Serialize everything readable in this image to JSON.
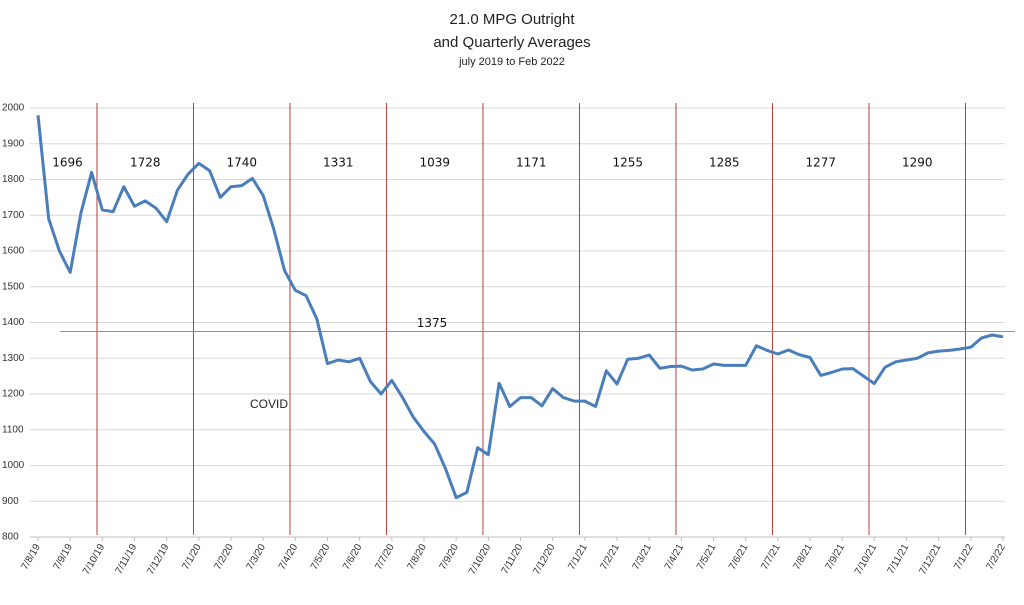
{
  "chart_data": {
    "type": "line",
    "title": "21.0 MPG Outright",
    "subtitle_line": "and Quarterly Averages",
    "subtitle": "july 2019 to Feb 2022",
    "categories": [
      "7/8/19",
      null,
      null,
      "7/9/19",
      null,
      null,
      "7/10/19",
      null,
      null,
      "7/11/19",
      null,
      null,
      "7/12/19",
      null,
      null,
      "7/1/20",
      null,
      null,
      "7/2/20",
      null,
      null,
      "7/3/20",
      null,
      null,
      "7/4/20",
      null,
      null,
      "7/5/20",
      null,
      null,
      "7/6/20",
      null,
      null,
      "7/7/20",
      null,
      null,
      "7/8/20",
      null,
      null,
      "7/9/20",
      null,
      null,
      "7/10/20",
      null,
      null,
      "7/11/20",
      null,
      null,
      "7/12/20",
      null,
      null,
      "7/1/21",
      null,
      null,
      "7/2/21",
      null,
      null,
      "7/3/21",
      null,
      null,
      "7/4/21",
      null,
      null,
      "7/5/21",
      null,
      null,
      "7/6/21",
      null,
      null,
      "7/7/21",
      null,
      null,
      "7/8/21",
      null,
      null,
      "7/9/21",
      null,
      null,
      "7/10/21",
      null,
      null,
      "7/11/21",
      null,
      null,
      "7/12/21",
      null,
      null,
      "7/1/22",
      null,
      null,
      "7/2/22"
    ],
    "series": [
      {
        "name": "21.0 MPG Outright",
        "color": "#4a7ebb",
        "values": [
          1980,
          1690,
          1600,
          1540,
          1706,
          1820,
          1715,
          1710,
          1780,
          1725,
          1740,
          1720,
          1682,
          1770,
          1815,
          1845,
          1825,
          1750,
          1780,
          1783,
          1803,
          1755,
          1660,
          1545,
          1490,
          1475,
          1410,
          1285,
          1295,
          1290,
          1300,
          1235,
          1200,
          1238,
          1190,
          1135,
          1095,
          1060,
          992,
          910,
          925,
          1050,
          1030,
          1230,
          1165,
          1190,
          1190,
          1167,
          1215,
          1190,
          1180,
          1180,
          1165,
          1265,
          1228,
          1297,
          1300,
          1309,
          1272,
          1277,
          1278,
          1267,
          1270,
          1284,
          1280,
          1280,
          1280,
          1335,
          1322,
          1312,
          1323,
          1310,
          1302,
          1252,
          1260,
          1270,
          1271,
          1250,
          1229,
          1275,
          1290,
          1295,
          1300,
          1315,
          1320,
          1322,
          1326,
          1331,
          1357,
          1365,
          1360
        ]
      }
    ],
    "ylim": [
      800,
      2000
    ],
    "yticks": [
      800,
      900,
      1000,
      1100,
      1200,
      1300,
      1400,
      1500,
      1600,
      1700,
      1800,
      1900,
      2000
    ],
    "grid": true,
    "quarterly_averages": [
      1696,
      1728,
      1740,
      1331,
      1039,
      1171,
      1255,
      1285,
      1277,
      1290
    ],
    "quarter_line_color": "#b5403d",
    "average": 1375,
    "average_color": "#4bacc6",
    "annotation": "COVID"
  }
}
